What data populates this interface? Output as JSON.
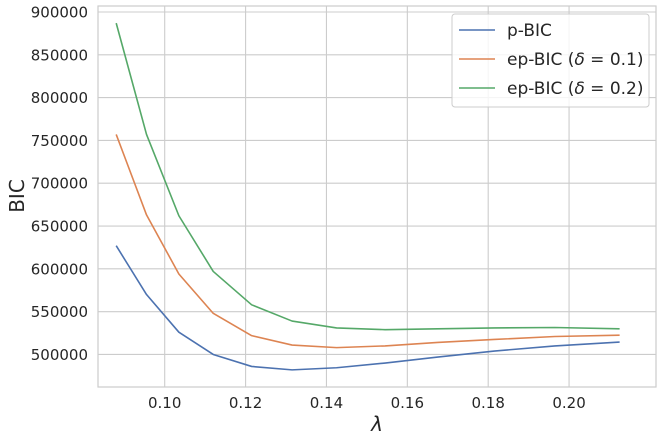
{
  "chart_data": {
    "type": "line",
    "xlabel": "λ",
    "ylabel": "BIC",
    "xlim": [
      0.0835,
      0.2215
    ],
    "ylim": [
      462000,
      907000
    ],
    "x_ticks": [
      0.1,
      0.12,
      0.14,
      0.16,
      0.18,
      0.2
    ],
    "x_tick_labels": [
      "0.10",
      "0.12",
      "0.14",
      "0.16",
      "0.18",
      "0.20"
    ],
    "y_ticks": [
      500000,
      550000,
      600000,
      650000,
      700000,
      750000,
      800000,
      850000,
      900000
    ],
    "y_tick_labels": [
      "500000",
      "550000",
      "600000",
      "650000",
      "700000",
      "750000",
      "800000",
      "850000",
      "900000"
    ],
    "grid": true,
    "legend_position": "top-right",
    "x": [
      0.088,
      0.0955,
      0.1035,
      0.112,
      0.1215,
      0.1315,
      0.1425,
      0.1545,
      0.1675,
      0.1815,
      0.1965,
      0.2125
    ],
    "series": [
      {
        "name": "p-BIC",
        "color": "#4c72b0",
        "values": [
          627000,
          570000,
          526000,
          500000,
          486000,
          482000,
          484500,
          490000,
          497000,
          504000,
          510000,
          514500
        ]
      },
      {
        "name": "ep-BIC (δ = 0.1)",
        "name_base": "ep-BIC (",
        "name_var": "δ",
        "name_rest": " = 0.1)",
        "color": "#dd8452",
        "values": [
          757000,
          663000,
          594000,
          548000,
          522000,
          511000,
          508000,
          510000,
          514000,
          517500,
          521000,
          522500
        ]
      },
      {
        "name": "ep-BIC (δ = 0.2)",
        "name_base": "ep-BIC (",
        "name_var": "δ",
        "name_rest": " = 0.2)",
        "color": "#55a868",
        "values": [
          887000,
          757000,
          662000,
          597000,
          558000,
          539000,
          531000,
          529000,
          530000,
          531000,
          531500,
          530000
        ]
      }
    ]
  }
}
